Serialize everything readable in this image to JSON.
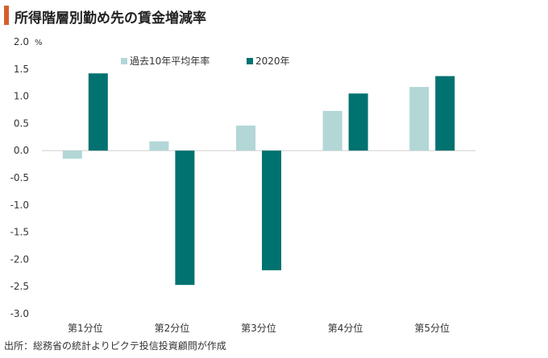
{
  "header": {
    "title": "所得階層別勤め先の賃金増減率",
    "accent_color": "#d4602b"
  },
  "footer": {
    "source": "出所：総務省の統計よりピクテ投信投資顧問が作成"
  },
  "chart_data": {
    "type": "bar",
    "title": "所得階層別勤め先の賃金増減率",
    "xlabel": "",
    "ylabel": "",
    "unit_label": "%",
    "categories": [
      "第1分位",
      "第2分位",
      "第3分位",
      "第4分位",
      "第5分位"
    ],
    "series": [
      {
        "name": "過去10年平均年率",
        "color": "#b3d6d6",
        "values": [
          -0.15,
          0.17,
          0.46,
          0.73,
          1.17
        ]
      },
      {
        "name": "2020年",
        "color": "#007270",
        "values": [
          1.42,
          -2.47,
          -2.2,
          1.05,
          1.37
        ]
      }
    ],
    "ylim": [
      -3.0,
      2.0
    ],
    "yticks": [
      "2.0",
      "1.5",
      "1.0",
      "0.5",
      "0.0",
      "-0.5",
      "-1.0",
      "-1.5",
      "-2.0",
      "-2.5",
      "-3.0"
    ],
    "grid": false,
    "legend_position": "top"
  }
}
